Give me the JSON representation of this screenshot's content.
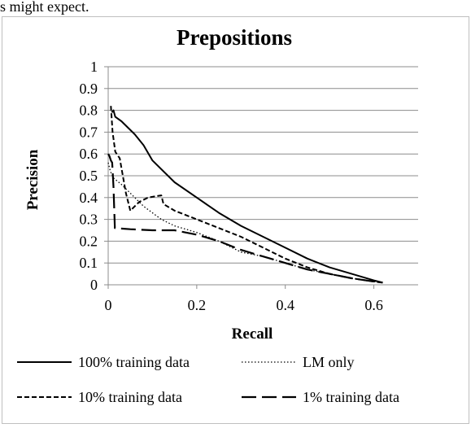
{
  "header": {
    "caption": "s might expect."
  },
  "chart_data": {
    "type": "line",
    "title": "Prepositions",
    "xlabel": "Recall",
    "ylabel": "Precision",
    "xlim": [
      0,
      0.7
    ],
    "ylim": [
      0,
      1
    ],
    "x_ticks": [
      "0",
      "0.2",
      "0.4",
      "0.6"
    ],
    "y_ticks": [
      "0",
      "0.1",
      "0.2",
      "0.3",
      "0.4",
      "0.5",
      "0.6",
      "0.7",
      "0.8",
      "0.9",
      "1"
    ],
    "grid": "horizontal",
    "legend_position": "bottom",
    "series": [
      {
        "name": "100% training data",
        "style": "solid",
        "points": [
          [
            0.008,
            0.79
          ],
          [
            0.012,
            0.8
          ],
          [
            0.016,
            0.77
          ],
          [
            0.03,
            0.75
          ],
          [
            0.06,
            0.69
          ],
          [
            0.08,
            0.64
          ],
          [
            0.1,
            0.57
          ],
          [
            0.15,
            0.47
          ],
          [
            0.2,
            0.4
          ],
          [
            0.25,
            0.33
          ],
          [
            0.3,
            0.27
          ],
          [
            0.35,
            0.22
          ],
          [
            0.4,
            0.17
          ],
          [
            0.45,
            0.12
          ],
          [
            0.5,
            0.08
          ],
          [
            0.55,
            0.05
          ],
          [
            0.6,
            0.02
          ],
          [
            0.62,
            0.01
          ]
        ]
      },
      {
        "name": "LM only",
        "style": "dotted",
        "points": [
          [
            0.0,
            0.56
          ],
          [
            0.005,
            0.52
          ],
          [
            0.012,
            0.49
          ],
          [
            0.03,
            0.46
          ],
          [
            0.05,
            0.42
          ],
          [
            0.08,
            0.36
          ],
          [
            0.12,
            0.3
          ],
          [
            0.15,
            0.27
          ],
          [
            0.2,
            0.24
          ],
          [
            0.25,
            0.2
          ],
          [
            0.3,
            0.15
          ],
          [
            0.35,
            0.13
          ],
          [
            0.4,
            0.1
          ],
          [
            0.45,
            0.07
          ],
          [
            0.5,
            0.05
          ],
          [
            0.55,
            0.03
          ],
          [
            0.6,
            0.015
          ],
          [
            0.62,
            0.01
          ]
        ]
      },
      {
        "name": "10% training data",
        "style": "dashed",
        "points": [
          [
            0.006,
            0.82
          ],
          [
            0.01,
            0.7
          ],
          [
            0.016,
            0.61
          ],
          [
            0.026,
            0.58
          ],
          [
            0.04,
            0.42
          ],
          [
            0.05,
            0.34
          ],
          [
            0.07,
            0.38
          ],
          [
            0.09,
            0.4
          ],
          [
            0.12,
            0.41
          ],
          [
            0.125,
            0.37
          ],
          [
            0.15,
            0.34
          ],
          [
            0.2,
            0.3
          ],
          [
            0.25,
            0.26
          ],
          [
            0.3,
            0.22
          ],
          [
            0.35,
            0.17
          ],
          [
            0.4,
            0.12
          ],
          [
            0.45,
            0.08
          ],
          [
            0.5,
            0.05
          ],
          [
            0.55,
            0.03
          ],
          [
            0.6,
            0.015
          ],
          [
            0.62,
            0.01
          ]
        ]
      },
      {
        "name": "1% training data",
        "style": "longdash",
        "points": [
          [
            0.0,
            0.6
          ],
          [
            0.003,
            0.59
          ],
          [
            0.006,
            0.57
          ],
          [
            0.009,
            0.56
          ],
          [
            0.012,
            0.45
          ],
          [
            0.015,
            0.26
          ],
          [
            0.05,
            0.255
          ],
          [
            0.1,
            0.25
          ],
          [
            0.15,
            0.25
          ],
          [
            0.2,
            0.23
          ],
          [
            0.25,
            0.2
          ],
          [
            0.3,
            0.16
          ],
          [
            0.35,
            0.13
          ],
          [
            0.4,
            0.1
          ],
          [
            0.45,
            0.07
          ],
          [
            0.5,
            0.05
          ],
          [
            0.55,
            0.03
          ],
          [
            0.6,
            0.015
          ],
          [
            0.62,
            0.01
          ]
        ]
      }
    ]
  }
}
